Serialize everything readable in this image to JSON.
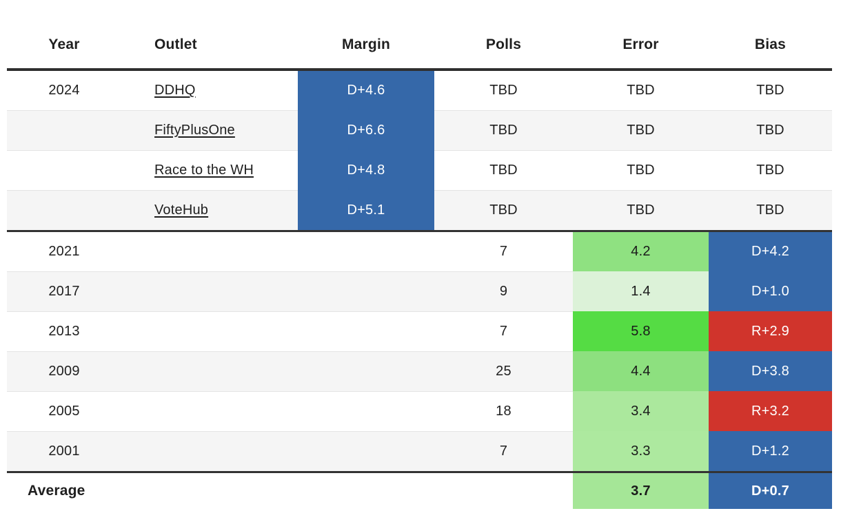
{
  "colors": {
    "dem_blue": "#3568a9",
    "rep_red": "#d0342c",
    "row_alt_bg": "#f5f5f5",
    "rule_dark": "#333333",
    "rule_light": "#e4e4e4",
    "text": "#1f1f1f"
  },
  "chart_data": {
    "type": "table",
    "columns": [
      "Year",
      "Outlet",
      "Margin",
      "Polls",
      "Error",
      "Bias"
    ],
    "rows": [
      {
        "year": "2024",
        "outlet": "DDHQ",
        "margin": "D+4.6",
        "margin_bg": "#3568a9",
        "polls": "TBD",
        "error": "TBD",
        "error_bg": "",
        "bias": "TBD",
        "bias_bg": ""
      },
      {
        "year": "",
        "outlet": "FiftyPlusOne",
        "margin": "D+6.6",
        "margin_bg": "#3568a9",
        "polls": "TBD",
        "error": "TBD",
        "error_bg": "",
        "bias": "TBD",
        "bias_bg": ""
      },
      {
        "year": "",
        "outlet": "Race to the WH",
        "margin": "D+4.8",
        "margin_bg": "#3568a9",
        "polls": "TBD",
        "error": "TBD",
        "error_bg": "",
        "bias": "TBD",
        "bias_bg": ""
      },
      {
        "year": "",
        "outlet": "VoteHub",
        "margin": "D+5.1",
        "margin_bg": "#3568a9",
        "polls": "TBD",
        "error": "TBD",
        "error_bg": "",
        "bias": "TBD",
        "bias_bg": ""
      },
      {
        "year": "2021",
        "outlet": "",
        "margin": "",
        "margin_bg": "",
        "polls": "7",
        "error": "4.2",
        "error_bg": "#8fe181",
        "bias": "D+4.2",
        "bias_bg": "#3568a9"
      },
      {
        "year": "2017",
        "outlet": "",
        "margin": "",
        "margin_bg": "",
        "polls": "9",
        "error": "1.4",
        "error_bg": "#dcf2d8",
        "bias": "D+1.0",
        "bias_bg": "#3568a9"
      },
      {
        "year": "2013",
        "outlet": "",
        "margin": "",
        "margin_bg": "",
        "polls": "7",
        "error": "5.8",
        "error_bg": "#55dc44",
        "bias": "R+2.9",
        "bias_bg": "#d0342c"
      },
      {
        "year": "2009",
        "outlet": "",
        "margin": "",
        "margin_bg": "",
        "polls": "25",
        "error": "4.4",
        "error_bg": "#8de07f",
        "bias": "D+3.8",
        "bias_bg": "#3568a9"
      },
      {
        "year": "2005",
        "outlet": "",
        "margin": "",
        "margin_bg": "",
        "polls": "18",
        "error": "3.4",
        "error_bg": "#abe89d",
        "bias": "R+3.2",
        "bias_bg": "#d0342c"
      },
      {
        "year": "2001",
        "outlet": "",
        "margin": "",
        "margin_bg": "",
        "polls": "7",
        "error": "3.3",
        "error_bg": "#ade99f",
        "bias": "D+1.2",
        "bias_bg": "#3568a9"
      }
    ],
    "average": {
      "label": "Average",
      "error": "3.7",
      "error_bg": "#a5e697",
      "bias": "D+0.7",
      "bias_bg": "#3568a9"
    }
  }
}
